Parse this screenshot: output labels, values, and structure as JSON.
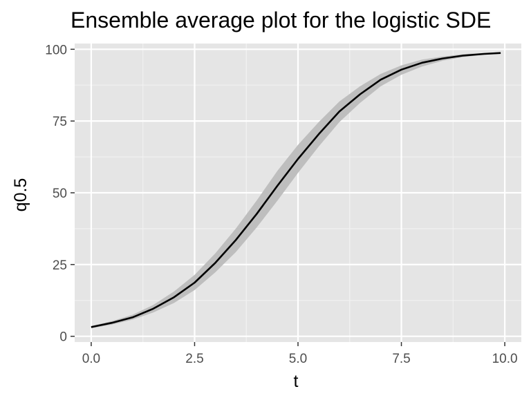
{
  "chart_data": {
    "type": "line",
    "title": "Ensemble average plot for the logistic SDE",
    "xlabel": "t",
    "ylabel": "q0.5",
    "xlim": [
      -0.4,
      10.4
    ],
    "ylim": [
      -2,
      102
    ],
    "x_ticks": [
      0,
      2.5,
      5,
      7.5,
      10
    ],
    "x_tick_labels": [
      "0.0",
      "2.5",
      "5.0",
      "7.5",
      "10.0"
    ],
    "y_ticks": [
      0,
      25,
      50,
      75,
      100
    ],
    "y_tick_labels": [
      "0",
      "25",
      "50",
      "75",
      "100"
    ],
    "grid": true,
    "legend": "none",
    "series": [
      {
        "x": [
          0,
          0.5,
          1,
          1.5,
          2,
          2.5,
          3,
          3.5,
          4,
          4.5,
          5,
          5.5,
          6,
          6.5,
          7,
          7.5,
          8,
          8.5,
          9,
          9.5,
          9.9
        ],
        "values": [
          3.2,
          4.7,
          6.6,
          9.6,
          13.6,
          18.7,
          25.6,
          33.6,
          42.6,
          52.4,
          61.8,
          70.4,
          78.3,
          84.3,
          89.4,
          92.9,
          95.3,
          96.8,
          97.8,
          98.4,
          98.7
        ],
        "lower": [
          2.8,
          4.1,
          5.8,
          8.3,
          11.6,
          16.1,
          22.3,
          29.4,
          37.9,
          47.2,
          56.9,
          66.1,
          74.6,
          81.3,
          87.1,
          91.1,
          94.0,
          96.0,
          97.3,
          98.1,
          98.4
        ],
        "upper": [
          3.6,
          5.3,
          7.5,
          10.9,
          15.6,
          21.4,
          28.9,
          37.6,
          47.3,
          57.6,
          66.7,
          74.6,
          81.8,
          87.1,
          91.4,
          94.4,
          96.4,
          97.5,
          98.3,
          98.7,
          99.0
        ],
        "line_color": "#000000",
        "ribbon_color": "#bebebe"
      }
    ],
    "colors": {
      "panel_background": "#e5e5e5",
      "grid_major": "#ffffff",
      "grid_minor": "#f2f2f2",
      "tick_text": "#4d4d4d",
      "tick_mark": "#333333"
    }
  }
}
